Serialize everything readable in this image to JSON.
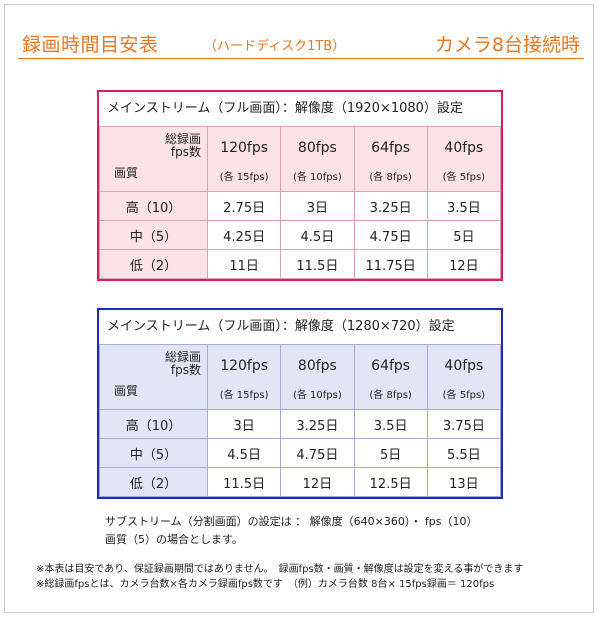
{
  "header": {
    "title": "録画時間目安表",
    "subtitle_prefix": "（ハードディスク",
    "subtitle_accent": "1TB",
    "subtitle_suffix": "）",
    "camera_info": "カメラ8台接続時"
  },
  "table1": {
    "title": "メインストリーム（フル画面）：解像度（1920×1080）設定",
    "corner_top_line1": "総録画",
    "corner_top_line2": "fps数",
    "corner_bottom": "画質",
    "columns": [
      {
        "fps": "120fps",
        "per": "(各 15fps)"
      },
      {
        "fps": "80fps",
        "per": "(各 10fps)"
      },
      {
        "fps": "64fps",
        "per": "(各 8fps)"
      },
      {
        "fps": "40fps",
        "per": "(各 5fps)"
      }
    ],
    "rows": [
      {
        "label": "高（10）",
        "values": [
          "2.75日",
          "3日",
          "3.25日",
          "3.5日"
        ]
      },
      {
        "label": "中（5）",
        "values": [
          "4.25日",
          "4.5日",
          "4.75日",
          "5日"
        ]
      },
      {
        "label": "低（2）",
        "values": [
          "11日",
          "11.5日",
          "11.75日",
          "12日"
        ]
      }
    ]
  },
  "table2": {
    "title": "メインストリーム（フル画面）：解像度（1280×720）設定",
    "corner_top_line1": "総録画",
    "corner_top_line2": "fps数",
    "corner_bottom": "画質",
    "columns": [
      {
        "fps": "120fps",
        "per": "(各 15fps)"
      },
      {
        "fps": "80fps",
        "per": "(各 10fps)"
      },
      {
        "fps": "64fps",
        "per": "(各 8fps)"
      },
      {
        "fps": "40fps",
        "per": "(各 5fps)"
      }
    ],
    "rows": [
      {
        "label": "高（10）",
        "values": [
          "3日",
          "3.25日",
          "3.5日",
          "3.75日"
        ]
      },
      {
        "label": "中（5）",
        "values": [
          "4.5日",
          "4.75日",
          "5日",
          "5.5日"
        ]
      },
      {
        "label": "低（2）",
        "values": [
          "11.5日",
          "12日",
          "12.5日",
          "13日"
        ]
      }
    ]
  },
  "notes": {
    "substream_line1": "サブストリーム（分割画面）の設定は ： 解像度（640×360）・ fps（10）",
    "substream_line2": "画質（5）の場合とします。",
    "footnote1": "※本表は目安であり、保証録画期間ではありません。　録画fps数・画質・解像度は設定を変える事ができます",
    "footnote2": "※総録画fpsとは、カメラ台数×各カメラ録画fps数です　（例）カメラ台数 8台× 15fps録画＝ 120fps"
  },
  "colors": {
    "accent": "#e87722",
    "table1_border": "#d81e5b",
    "table1_header_bg": "#fbe2e7",
    "table2_border": "#1f2bb5",
    "table2_header_bg": "#e3e5f6"
  }
}
